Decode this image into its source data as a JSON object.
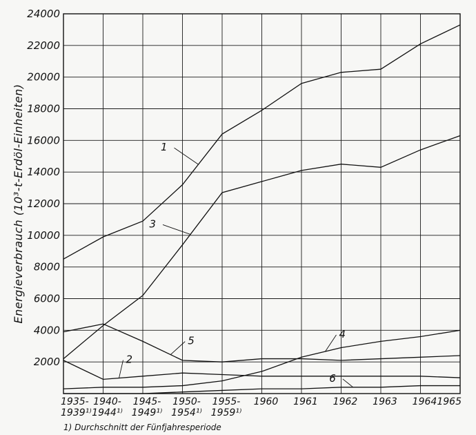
{
  "chart_data": {
    "type": "line",
    "ylabel": "Energieverbrauch (10³-t-Erdöl-Einheiten)",
    "ylim": [
      0,
      24000
    ],
    "yticks": [
      "2000",
      "4000",
      "6000",
      "8000",
      "10000",
      "12000",
      "14000",
      "16000",
      "18000",
      "20000",
      "22000",
      "24000"
    ],
    "categories": [
      "1935-1939",
      "1940-1944",
      "1945-1949",
      "1950-1954",
      "1955-1959",
      "1960",
      "1961",
      "1962",
      "1963",
      "1964",
      "1965"
    ],
    "tick_labels": [
      {
        "main": "1935-",
        "sub": "1939¹⁾"
      },
      {
        "main": "1940-",
        "sub": "1944¹⁾"
      },
      {
        "main": "1945-",
        "sub": "1949¹⁾"
      },
      {
        "main": "1950-",
        "sub": "1954¹⁾"
      },
      {
        "main": "1955-",
        "sub": "1959¹⁾"
      },
      {
        "main": "1960",
        "sub": ""
      },
      {
        "main": "1961",
        "sub": ""
      },
      {
        "main": "1962",
        "sub": ""
      },
      {
        "main": "1963",
        "sub": ""
      },
      {
        "main": "1964",
        "sub": ""
      },
      {
        "main": "1965",
        "sub": ""
      }
    ],
    "footnote": "1) Durchschnitt der Fünfjahresperiode",
    "grid": true,
    "series": [
      {
        "name": "1",
        "values": [
          8500,
          9900,
          10900,
          13200,
          16400,
          17900,
          19600,
          20300,
          20500,
          22100,
          23300
        ]
      },
      {
        "name": "2",
        "values": [
          2100,
          900,
          1100,
          1300,
          1200,
          1100,
          1100,
          1100,
          1100,
          1100,
          1000
        ]
      },
      {
        "name": "3",
        "values": [
          2200,
          4300,
          6200,
          9400,
          12700,
          13400,
          14100,
          14500,
          14300,
          15400,
          16300
        ]
      },
      {
        "name": "4",
        "values": [
          300,
          400,
          400,
          500,
          800,
          1400,
          2300,
          2900,
          3300,
          3600,
          4000
        ]
      },
      {
        "name": "5",
        "values": [
          3900,
          4400,
          3300,
          2100,
          2000,
          2200,
          2200,
          2100,
          2200,
          2300,
          2400
        ]
      },
      {
        "name": "6",
        "values": [
          0,
          0,
          0,
          100,
          200,
          300,
          300,
          400,
          400,
          500,
          500
        ]
      }
    ]
  }
}
